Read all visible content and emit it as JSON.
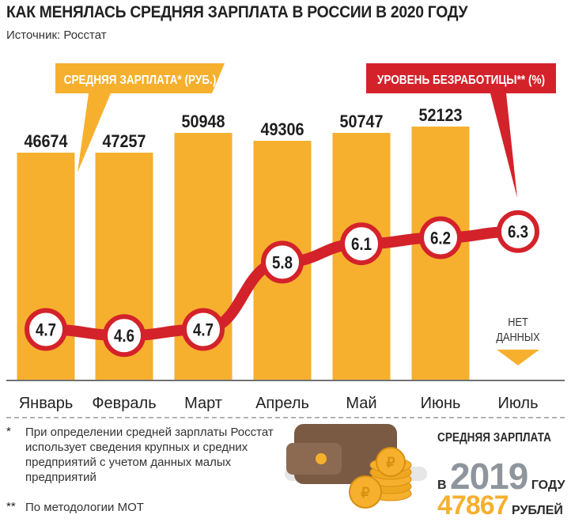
{
  "title": "КАК МЕНЯЛАСЬ СРЕДНЯЯ ЗАРПЛАТА В РОССИИ В 2020 ГОДУ",
  "source": "Источник: Росстат",
  "colors": {
    "bar": "#f6b02e",
    "line": "#d4222a",
    "callout_salary": "#f6b02e",
    "callout_unemp": "#d4222a",
    "accent_gray": "#8e959c"
  },
  "chart_data": {
    "type": "bar",
    "categories": [
      "Январь",
      "Февраль",
      "Март",
      "Апрель",
      "Май",
      "Июнь",
      "Июль"
    ],
    "series": [
      {
        "name": "СРЕДНЯЯ ЗАРПЛАТА* (РУБ.)",
        "type": "bar",
        "values": [
          46674,
          47257,
          50948,
          49306,
          50747,
          52123,
          null
        ],
        "labels": [
          "46674",
          "47257",
          "50948",
          "49306",
          "50747",
          "52123",
          ""
        ]
      },
      {
        "name": "УРОВЕНЬ БЕЗРАБОТИЦЫ** (%)",
        "type": "line",
        "values": [
          4.7,
          4.6,
          4.7,
          5.8,
          6.1,
          6.2,
          6.3
        ],
        "labels": [
          "4.7",
          "4.6",
          "4.7",
          "5.8",
          "6.1",
          "6.2",
          "6.3"
        ]
      }
    ],
    "no_data_label": [
      "НЕТ",
      "ДАННЫХ"
    ],
    "grid": false
  },
  "footnotes": {
    "star": "*",
    "fn1": "При определении средней зарплаты Росстат использует сведения крупных и средних предприятий с учетом данных малых предприятий",
    "star2": "**",
    "fn2": "По методологии МОТ"
  },
  "comparison": {
    "label": "СРЕДНЯЯ ЗАРПЛАТА",
    "prefix": "В",
    "year": "2019",
    "suffix": "ГОДУ",
    "salary": "47867",
    "unit": "РУБЛЕЙ"
  },
  "icons": {
    "wallet": "wallet-icon",
    "coins": "ruble-coins-icon"
  }
}
